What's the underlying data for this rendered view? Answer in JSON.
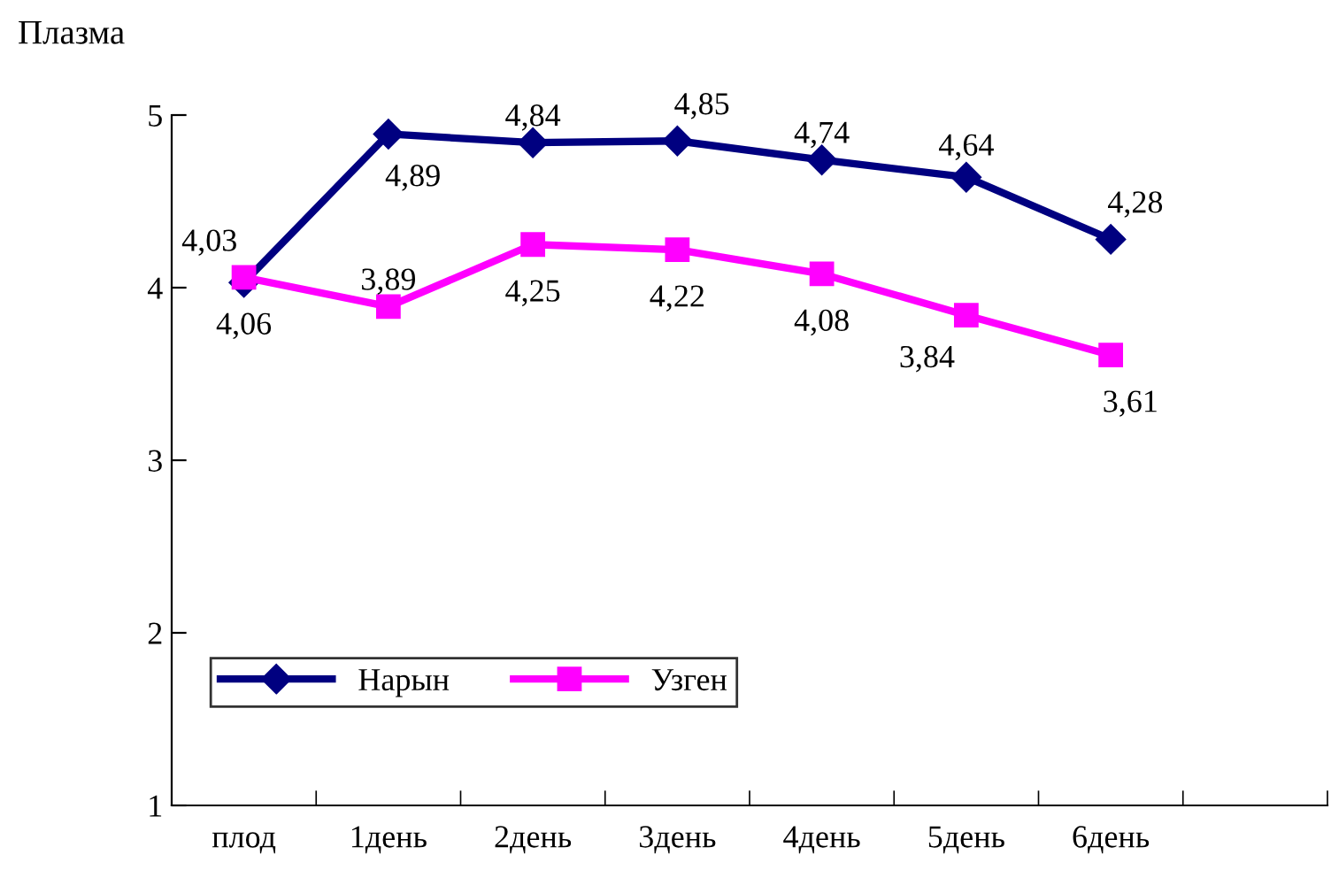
{
  "chart_data": {
    "type": "line",
    "ylabel": "Плазма",
    "categories": [
      "плод",
      "1день",
      "2день",
      "3день",
      "4день",
      "5день",
      "6день",
      null
    ],
    "series": [
      {
        "name": "Нарын",
        "color": "#000080",
        "marker": "diamond",
        "values": [
          4.03,
          4.89,
          4.84,
          4.85,
          4.74,
          4.64,
          4.28,
          null
        ],
        "value_labels": [
          "4,03",
          "4,89",
          "4,84",
          "4,85",
          "4,74",
          "4,64",
          "4,28",
          null
        ]
      },
      {
        "name": "Узген",
        "color": "#ff00ff",
        "marker": "square",
        "values": [
          4.06,
          3.89,
          4.25,
          4.22,
          4.08,
          3.84,
          3.61,
          null
        ],
        "value_labels": [
          "4,06",
          "3,89",
          "4,25",
          "4,22",
          "4,08",
          "3,84",
          "3,61",
          null
        ]
      }
    ],
    "ylim": [
      1,
      5
    ],
    "yticks": [
      1,
      2,
      3,
      4,
      5
    ],
    "grid": false,
    "legend": "bottom left",
    "line_style": "solid"
  }
}
